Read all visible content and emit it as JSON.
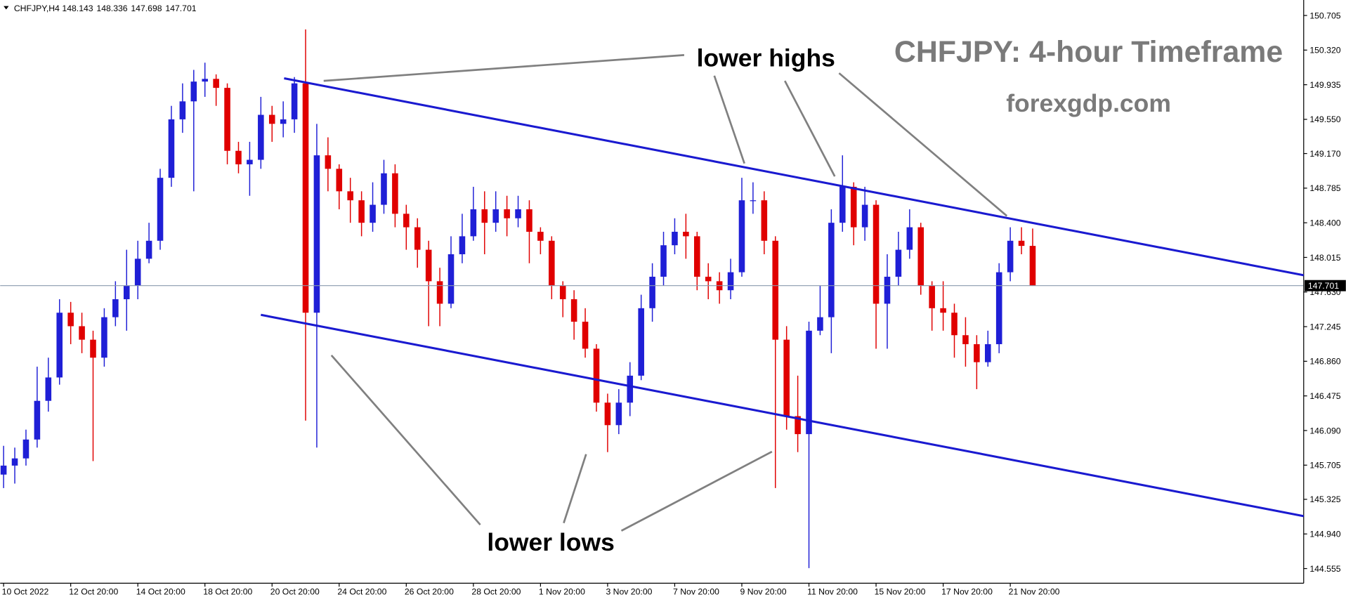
{
  "chart_data": {
    "type": "candlestick",
    "symbol": "CHFJPY,H4",
    "title": "CHFJPY: 4-hour Timeframe",
    "subtitle": "forexgdp.com",
    "annotations": [
      "lower highs",
      "lower lows"
    ],
    "bull_color": "#1f1fd6",
    "bear_color": "#e00000",
    "ylim": [
      144.392,
      150.877
    ],
    "yticks": [
      150.705,
      {
        "value": 150.32,
        "label": "150.320"
      },
      149.935,
      {
        "value": 149.55,
        "label": "149.550"
      },
      {
        "value": 149.17,
        "label": "149.170"
      },
      148.785,
      {
        "value": 148.4,
        "label": "148.400"
      },
      148.015,
      {
        "value": 147.63,
        "label": "147.630"
      },
      147.245,
      {
        "value": 146.86,
        "label": "146.860"
      },
      146.475,
      {
        "value": 146.09,
        "label": "146.090"
      },
      145.705,
      145.325,
      {
        "value": 144.94,
        "label": "144.940"
      },
      144.555
    ],
    "xticks": [
      {
        "value": 0,
        "label": "10 Oct 2022"
      },
      {
        "value": 6,
        "label": "12 Oct 20:00"
      },
      {
        "value": 12,
        "label": "14 Oct 20:00"
      },
      {
        "value": 18,
        "label": "18 Oct 20:00"
      },
      {
        "value": 24,
        "label": "20 Oct 20:00"
      },
      {
        "value": 30,
        "label": "24 Oct 20:00"
      },
      {
        "value": 36,
        "label": "26 Oct 20:00"
      },
      {
        "value": 42,
        "label": "28 Oct 20:00"
      },
      {
        "value": 48,
        "label": "1 Nov 20:00"
      },
      {
        "value": 54,
        "label": "3 Nov 20:00"
      },
      {
        "value": 60,
        "label": "7 Nov 20:00"
      },
      {
        "value": 66,
        "label": "9 Nov 20:00"
      },
      {
        "value": 72,
        "label": "11 Nov 20:00"
      },
      {
        "value": 78,
        "label": "15 Nov 20:00"
      },
      {
        "value": 84,
        "label": "17 Nov 20:00"
      },
      {
        "value": 90,
        "label": "21 Nov 20:00"
      }
    ],
    "candles": [
      [
        145.6,
        145.92,
        145.45,
        145.7
      ],
      [
        145.7,
        145.9,
        145.5,
        145.78
      ],
      [
        145.78,
        146.1,
        145.7,
        145.99
      ],
      [
        145.99,
        146.8,
        145.9,
        146.42
      ],
      [
        146.42,
        146.9,
        146.3,
        146.68
      ],
      [
        146.68,
        147.55,
        146.6,
        147.4
      ],
      [
        147.4,
        147.52,
        147.05,
        147.25
      ],
      [
        147.25,
        147.4,
        146.95,
        147.1
      ],
      [
        147.1,
        147.2,
        145.75,
        146.9
      ],
      [
        146.9,
        147.45,
        146.8,
        147.35
      ],
      [
        147.35,
        147.75,
        147.25,
        147.55
      ],
      [
        147.55,
        148.1,
        147.2,
        147.7
      ],
      [
        147.7,
        148.2,
        147.55,
        148.0
      ],
      [
        148.0,
        148.4,
        147.95,
        148.2
      ],
      [
        148.2,
        149.0,
        148.1,
        148.9
      ],
      [
        148.9,
        149.7,
        148.8,
        149.55
      ],
      [
        149.55,
        149.95,
        149.4,
        149.75
      ],
      [
        149.75,
        150.1,
        148.75,
        149.97
      ],
      [
        149.97,
        150.18,
        149.8,
        150.0
      ],
      [
        150.0,
        150.05,
        149.7,
        149.9
      ],
      [
        149.9,
        149.95,
        149.05,
        149.2
      ],
      [
        149.2,
        149.3,
        148.95,
        149.05
      ],
      [
        149.05,
        149.3,
        148.7,
        149.1
      ],
      [
        149.1,
        149.8,
        149.0,
        149.6
      ],
      [
        149.6,
        149.7,
        149.3,
        149.5
      ],
      [
        149.5,
        149.75,
        149.35,
        149.55
      ],
      [
        149.55,
        150.02,
        149.4,
        149.95
      ],
      [
        149.95,
        150.55,
        146.2,
        147.4
      ],
      [
        147.4,
        149.5,
        145.9,
        149.15
      ],
      [
        149.15,
        149.35,
        148.75,
        149.0
      ],
      [
        149.0,
        149.05,
        148.55,
        148.75
      ],
      [
        148.75,
        148.9,
        148.4,
        148.65
      ],
      [
        148.65,
        148.75,
        148.25,
        148.4
      ],
      [
        148.4,
        148.85,
        148.3,
        148.6
      ],
      [
        148.6,
        149.1,
        148.5,
        148.95
      ],
      [
        148.95,
        149.05,
        148.35,
        148.5
      ],
      [
        148.5,
        148.6,
        148.1,
        148.35
      ],
      [
        148.35,
        148.45,
        147.9,
        148.1
      ],
      [
        148.1,
        148.2,
        147.25,
        147.75
      ],
      [
        147.75,
        147.9,
        147.25,
        147.5
      ],
      [
        147.5,
        148.25,
        147.45,
        148.05
      ],
      [
        148.05,
        148.5,
        147.95,
        148.25
      ],
      [
        148.25,
        148.8,
        148.2,
        148.55
      ],
      [
        148.55,
        148.75,
        148.05,
        148.4
      ],
      [
        148.4,
        148.75,
        148.3,
        148.55
      ],
      [
        148.55,
        148.7,
        148.25,
        148.45
      ],
      [
        148.45,
        148.7,
        148.35,
        148.55
      ],
      [
        148.55,
        148.65,
        147.95,
        148.3
      ],
      [
        148.3,
        148.35,
        148.05,
        148.2
      ],
      [
        148.2,
        148.25,
        147.55,
        147.7
      ],
      [
        147.7,
        147.75,
        147.35,
        147.55
      ],
      [
        147.55,
        147.65,
        147.1,
        147.3
      ],
      [
        147.3,
        147.45,
        146.9,
        147.0
      ],
      [
        147.0,
        147.05,
        146.3,
        146.4
      ],
      [
        146.4,
        146.5,
        145.85,
        146.15
      ],
      [
        146.15,
        146.55,
        146.05,
        146.4
      ],
      [
        146.4,
        146.85,
        146.25,
        146.7
      ],
      [
        146.7,
        147.6,
        146.65,
        147.45
      ],
      [
        147.45,
        147.95,
        147.3,
        147.8
      ],
      [
        147.8,
        148.3,
        147.7,
        148.15
      ],
      [
        148.15,
        148.45,
        148.05,
        148.3
      ],
      [
        148.3,
        148.5,
        148.0,
        148.25
      ],
      [
        148.25,
        148.3,
        147.65,
        147.8
      ],
      [
        147.8,
        147.95,
        147.55,
        147.75
      ],
      [
        147.75,
        147.85,
        147.5,
        147.65
      ],
      [
        147.65,
        148.0,
        147.55,
        147.85
      ],
      [
        147.85,
        148.9,
        147.8,
        148.65
      ],
      [
        148.65,
        148.85,
        148.5,
        148.65
      ],
      [
        148.65,
        148.75,
        148.05,
        148.2
      ],
      [
        148.2,
        148.25,
        145.45,
        147.1
      ],
      [
        147.1,
        147.25,
        146.1,
        146.25
      ],
      [
        146.25,
        146.7,
        145.85,
        146.05
      ],
      [
        146.05,
        147.3,
        144.56,
        147.2
      ],
      [
        147.2,
        147.7,
        147.15,
        147.35
      ],
      [
        147.35,
        148.55,
        146.95,
        148.4
      ],
      [
        148.4,
        149.15,
        148.3,
        148.8
      ],
      [
        148.8,
        148.85,
        148.15,
        148.35
      ],
      [
        148.35,
        148.8,
        148.2,
        148.6
      ],
      [
        148.6,
        148.65,
        147.0,
        147.5
      ],
      [
        147.5,
        148.05,
        147.0,
        147.8
      ],
      [
        147.8,
        148.3,
        147.7,
        148.1
      ],
      [
        148.1,
        148.55,
        148.0,
        148.35
      ],
      [
        148.35,
        148.4,
        147.6,
        147.7
      ],
      [
        147.7,
        147.75,
        147.2,
        147.45
      ],
      [
        147.45,
        147.75,
        147.2,
        147.4
      ],
      [
        147.4,
        147.5,
        146.9,
        147.15
      ],
      [
        147.15,
        147.35,
        146.8,
        147.05
      ],
      [
        147.05,
        147.15,
        146.55,
        146.85
      ],
      [
        146.85,
        147.2,
        146.8,
        147.05
      ],
      [
        147.05,
        147.95,
        146.95,
        147.85
      ],
      [
        147.85,
        148.35,
        147.75,
        148.2
      ],
      [
        148.2,
        148.35,
        148.05,
        148.143
      ],
      [
        148.143,
        148.336,
        147.698,
        147.701
      ]
    ]
  }
}
